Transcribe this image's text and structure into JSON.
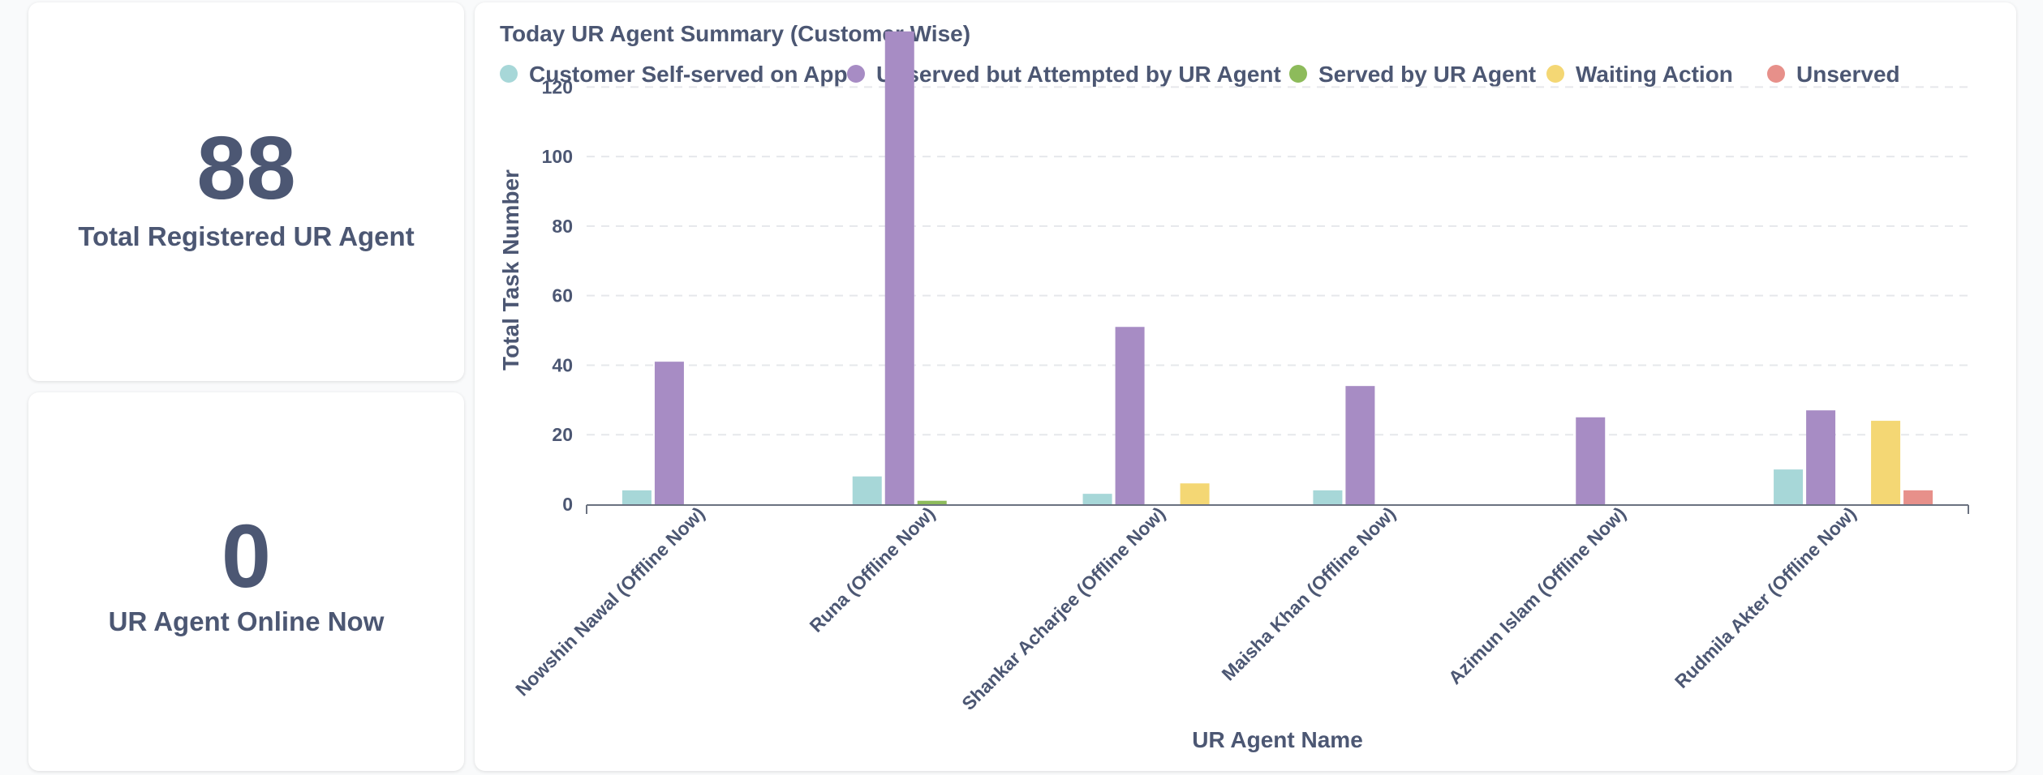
{
  "scalars": {
    "registered": {
      "value": "88",
      "label": "Total Registered UR Agent"
    },
    "online": {
      "value": "0",
      "label": "UR Agent Online Now"
    }
  },
  "chart_data": {
    "type": "bar",
    "title": "Today UR Agent Summary (Customer Wise)",
    "xlabel": "UR Agent Name",
    "ylabel": "Total Task Number",
    "ylim": [
      0,
      135
    ],
    "yticks": [
      0,
      20,
      40,
      60,
      80,
      100,
      120
    ],
    "grid": true,
    "legend_position": "top-left",
    "categories": [
      "Nowshin Nawal (Offline Now)",
      "Runa (Offline Now)",
      "Shankar Acharjee (Offline Now)",
      "Maisha Khan (Offline Now)",
      "Azimun Islam (Offline Now)",
      "Rudmila Akter (Offline Now)"
    ],
    "series": [
      {
        "name": "Customer Self-served on App",
        "color": "#a7d7d8",
        "values": [
          4,
          8,
          3,
          4,
          0,
          10
        ]
      },
      {
        "name": "Unserved but Attempted by UR Agent",
        "color": "#a78cc4",
        "values": [
          41,
          136,
          51,
          34,
          25,
          27
        ]
      },
      {
        "name": "Served by UR Agent",
        "color": "#8dbb5b",
        "values": [
          0,
          1,
          0,
          0,
          0,
          0
        ]
      },
      {
        "name": "Waiting Action",
        "color": "#f4d774",
        "values": [
          0,
          0,
          6,
          0,
          0,
          24
        ]
      },
      {
        "name": "Unserved",
        "color": "#e7908a",
        "values": [
          0,
          0,
          0,
          0,
          0,
          4
        ]
      }
    ]
  }
}
